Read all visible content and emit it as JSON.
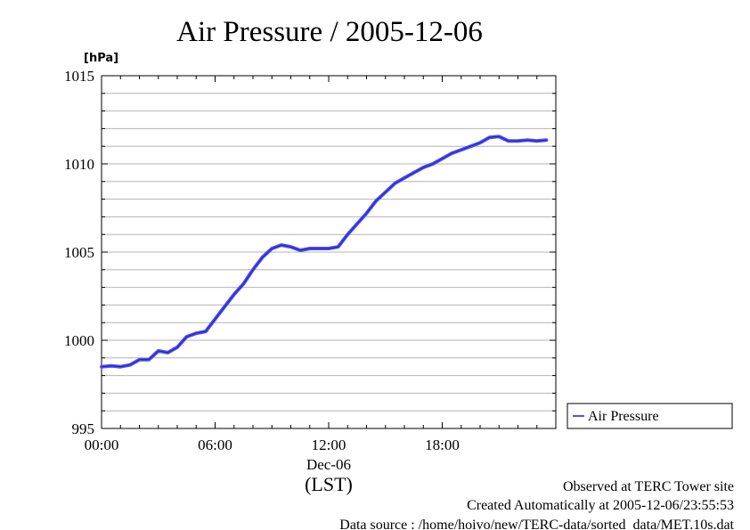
{
  "chart_data": {
    "type": "line",
    "title": "Air Pressure / 2005-12-06",
    "ylabel": "[hPa]",
    "ylim": [
      995,
      1015
    ],
    "yticks": [
      {
        "value": 995,
        "label": "995"
      },
      {
        "value": 1000,
        "label": "1000"
      },
      {
        "value": 1005,
        "label": "1005"
      },
      {
        "value": 1010,
        "label": "1010"
      },
      {
        "value": 1015,
        "label": "1015"
      }
    ],
    "xlim_hours": [
      0,
      24
    ],
    "xticks": [
      {
        "hour": 0,
        "label": "00:00"
      },
      {
        "hour": 6,
        "label": "06:00"
      },
      {
        "hour": 12,
        "label": "12:00"
      },
      {
        "hour": 18,
        "label": "18:00"
      }
    ],
    "x_date_label": "Dec-06",
    "x_axis_label": "(LST)",
    "grid": true,
    "legend_position": "right",
    "series": [
      {
        "name": "Air Pressure",
        "color": "#5050ff",
        "x": [
          0,
          0.5,
          1,
          1.5,
          2,
          2.5,
          3,
          3.5,
          4,
          4.5,
          5,
          5.5,
          6,
          6.5,
          7,
          7.5,
          8,
          8.5,
          9,
          9.5,
          10,
          10.5,
          11,
          11.5,
          12,
          12.5,
          13,
          13.5,
          14,
          14.5,
          15,
          15.5,
          16,
          16.5,
          17,
          17.5,
          18,
          18.5,
          19,
          19.5,
          20,
          20.5,
          21,
          21.5,
          22,
          22.5,
          23,
          23.5
        ],
        "y": [
          998.5,
          998.55,
          998.5,
          998.6,
          998.9,
          998.9,
          999.4,
          999.3,
          999.6,
          1000.2,
          1000.4,
          1000.5,
          1001.2,
          1001.9,
          1002.6,
          1003.2,
          1004.0,
          1004.7,
          1005.2,
          1005.4,
          1005.3,
          1005.1,
          1005.2,
          1005.2,
          1005.2,
          1005.3,
          1006.0,
          1006.6,
          1007.2,
          1007.9,
          1008.4,
          1008.9,
          1009.2,
          1009.5,
          1009.8,
          1010.0,
          1010.3,
          1010.6,
          1010.8,
          1011.0,
          1011.2,
          1011.5,
          1011.55,
          1011.3,
          1011.3,
          1011.35,
          1011.3,
          1011.35
        ]
      }
    ]
  },
  "footer": {
    "observed": "Observed at TERC Tower site",
    "created": "Created Automatically at 2005-12-06/23:55:53",
    "source": "Data source : /home/hoivo/new/TERC-data/sorted_data/MET.10s.dat"
  }
}
